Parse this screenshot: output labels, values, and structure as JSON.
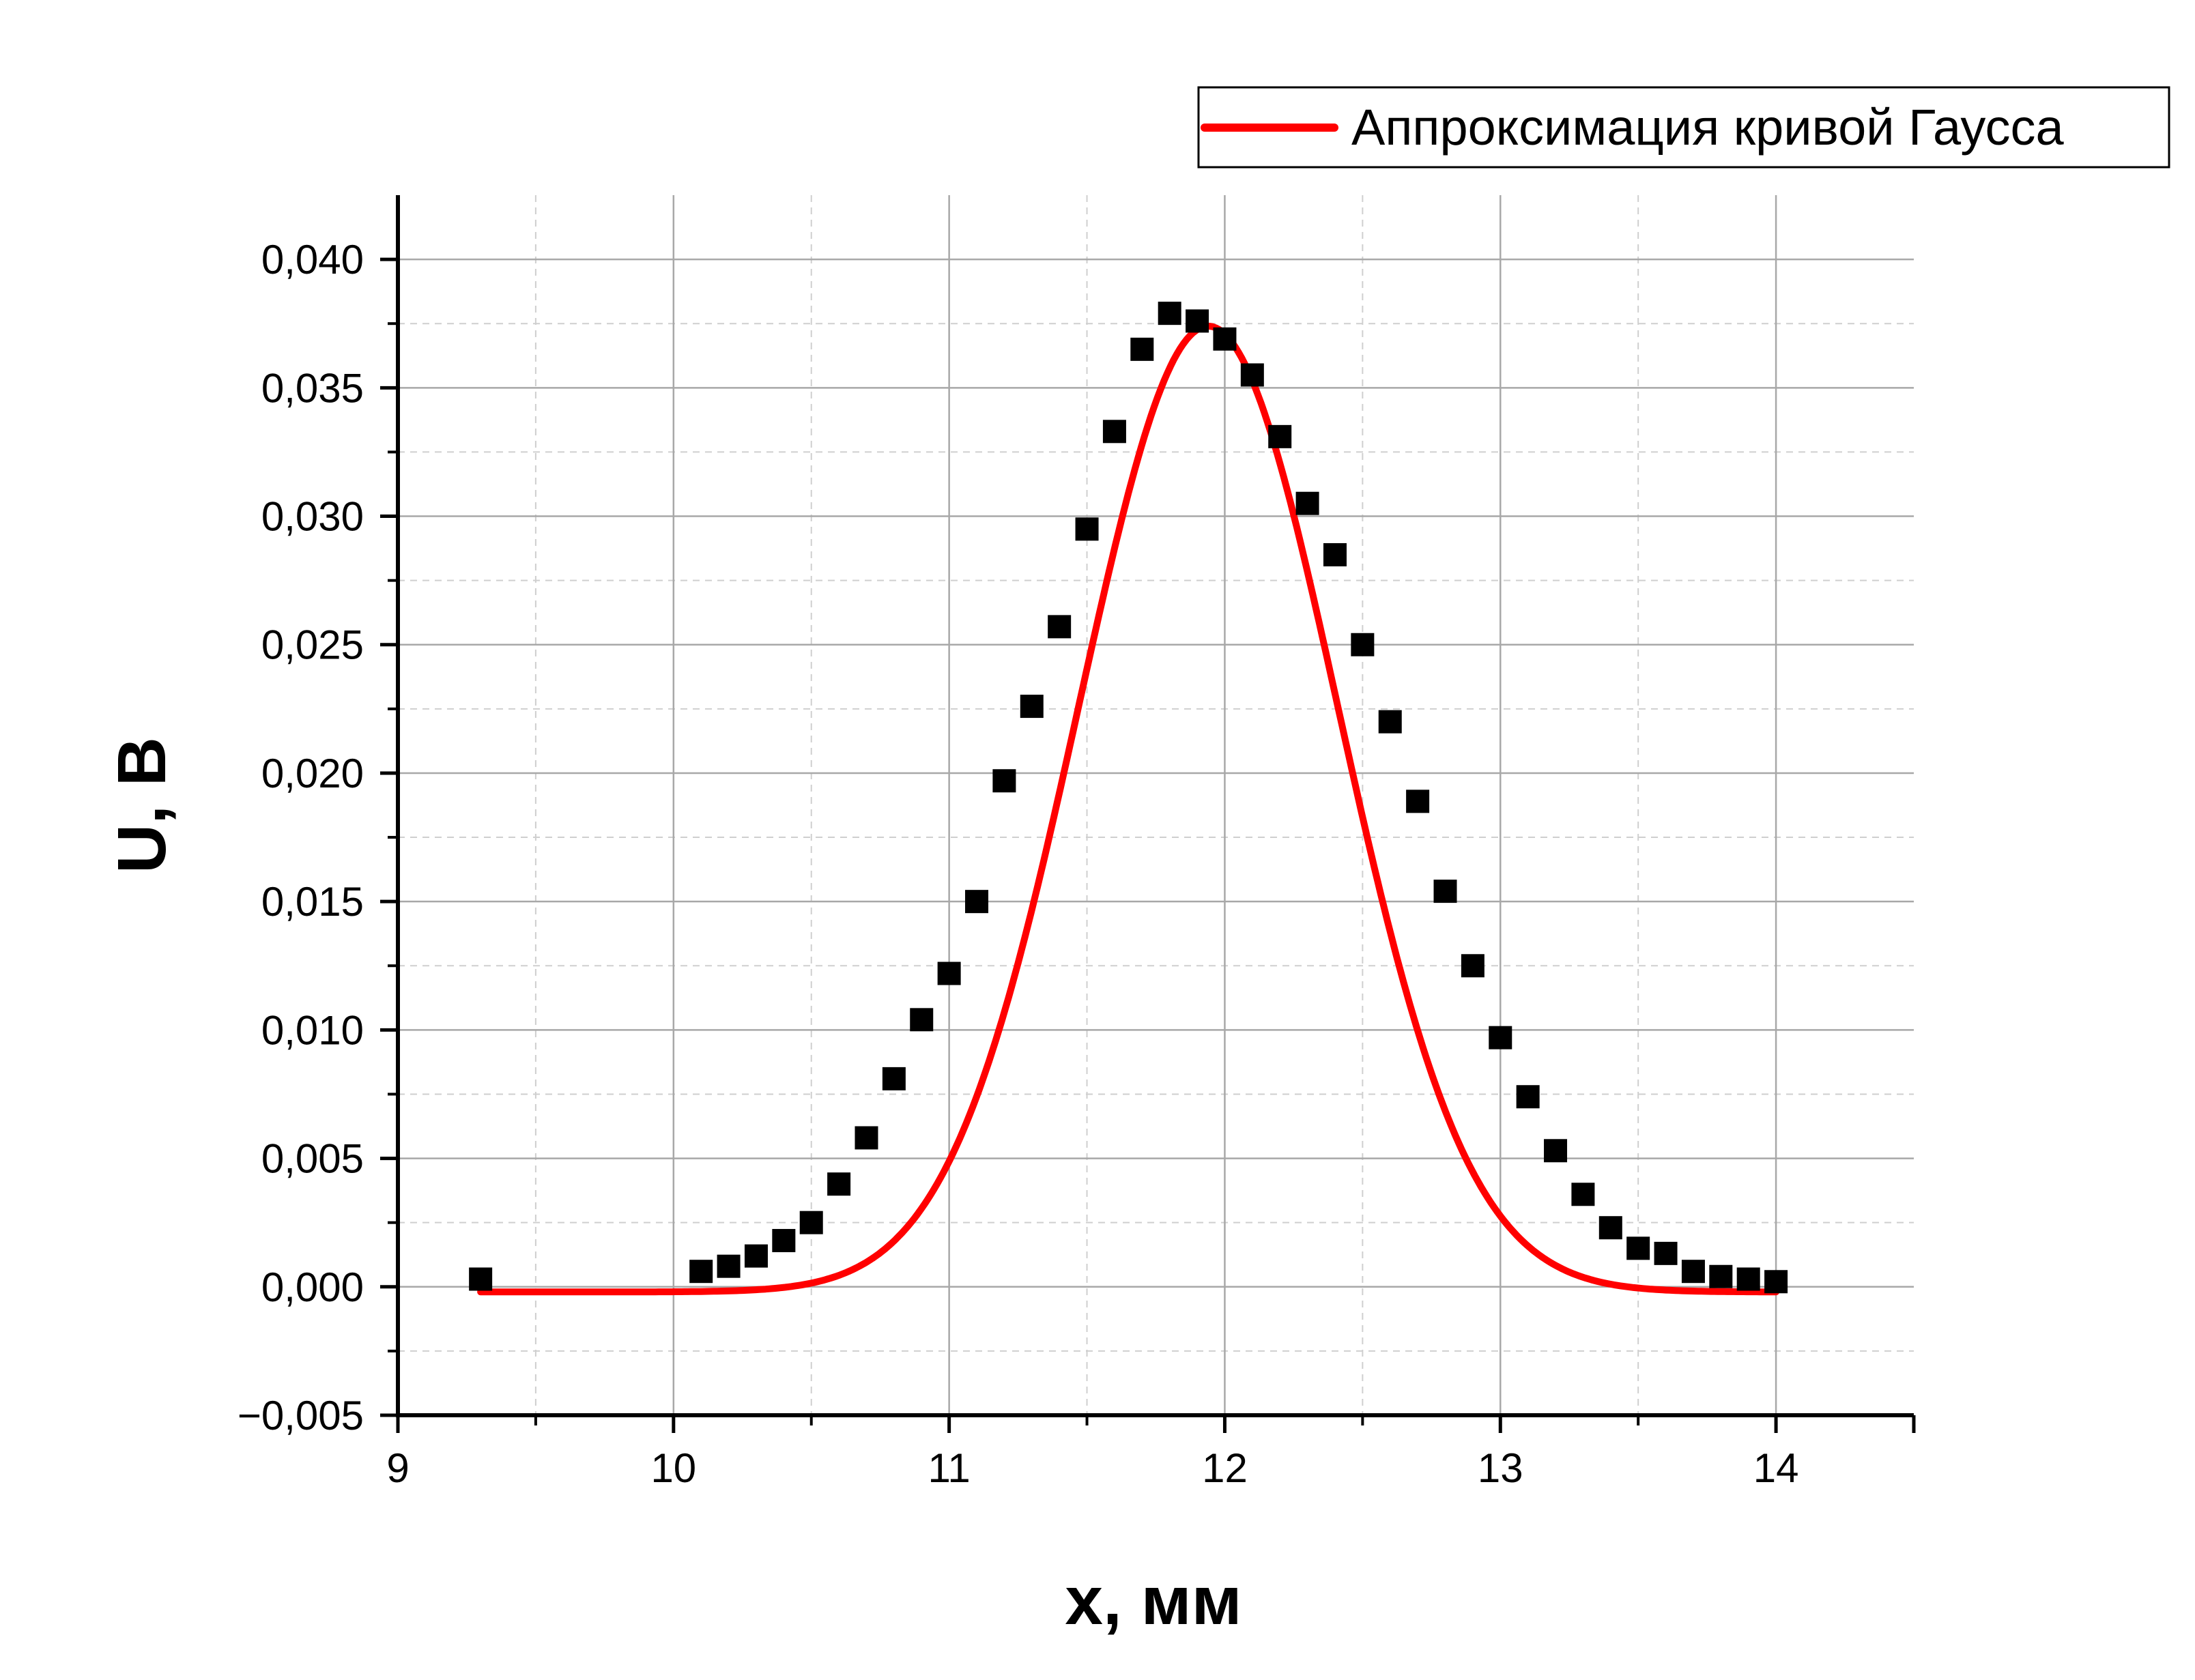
{
  "chart_data": {
    "type": "scatter",
    "xlabel": "x, мм",
    "ylabel": "U, В",
    "xlim": [
      9,
      14.5
    ],
    "ylim": [
      -0.005,
      0.0425
    ],
    "x_ticks": [
      9,
      10,
      11,
      12,
      13,
      14
    ],
    "x_tick_labels": [
      "9",
      "10",
      "11",
      "12",
      "13",
      "14"
    ],
    "y_ticks": [
      -0.005,
      0,
      0.005,
      0.01,
      0.015,
      0.02,
      0.025,
      0.03,
      0.035,
      0.04
    ],
    "y_tick_labels": [
      "−0,005",
      "0,000",
      "0,005",
      "0,010",
      "0,015",
      "0,020",
      "0,025",
      "0,030",
      "0,035",
      "0,040"
    ],
    "grid": true,
    "legend": {
      "position": "top-right",
      "entries": [
        "Аппроксимация кривой Гаусса"
      ]
    },
    "series": [
      {
        "type": "scatter",
        "marker": "square",
        "color": "#000000",
        "x": [
          9.3,
          10.1,
          10.2,
          10.3,
          10.4,
          10.5,
          10.6,
          10.7,
          10.8,
          10.9,
          11.0,
          11.1,
          11.2,
          11.3,
          11.4,
          11.5,
          11.6,
          11.7,
          11.8,
          11.9,
          12.0,
          12.1,
          12.2,
          12.3,
          12.4,
          12.5,
          12.6,
          12.7,
          12.8,
          12.9,
          13.0,
          13.1,
          13.2,
          13.3,
          13.4,
          13.5,
          13.6,
          13.7,
          13.8,
          13.9,
          14.0
        ],
        "y": [
          0.0003,
          0.0006,
          0.0008,
          0.0012,
          0.0018,
          0.0025,
          0.004,
          0.0058,
          0.0081,
          0.0104,
          0.0122,
          0.015,
          0.0197,
          0.0226,
          0.0257,
          0.0295,
          0.0333,
          0.0365,
          0.0379,
          0.0376,
          0.0369,
          0.0355,
          0.0331,
          0.0305,
          0.0285,
          0.025,
          0.022,
          0.0189,
          0.0154,
          0.0125,
          0.0097,
          0.0074,
          0.0053,
          0.0036,
          0.0023,
          0.0015,
          0.0013,
          0.0006,
          0.0004,
          0.0003,
          0.0002
        ]
      },
      {
        "type": "line",
        "name": "Аппроксимация кривой Гаусса",
        "color": "#ff0000",
        "model": "gauss",
        "x_range": [
          9.3,
          14.0
        ],
        "y0": -0.0002,
        "amplitude": 0.0376,
        "center": 11.94,
        "sigma": 0.47
      }
    ]
  }
}
